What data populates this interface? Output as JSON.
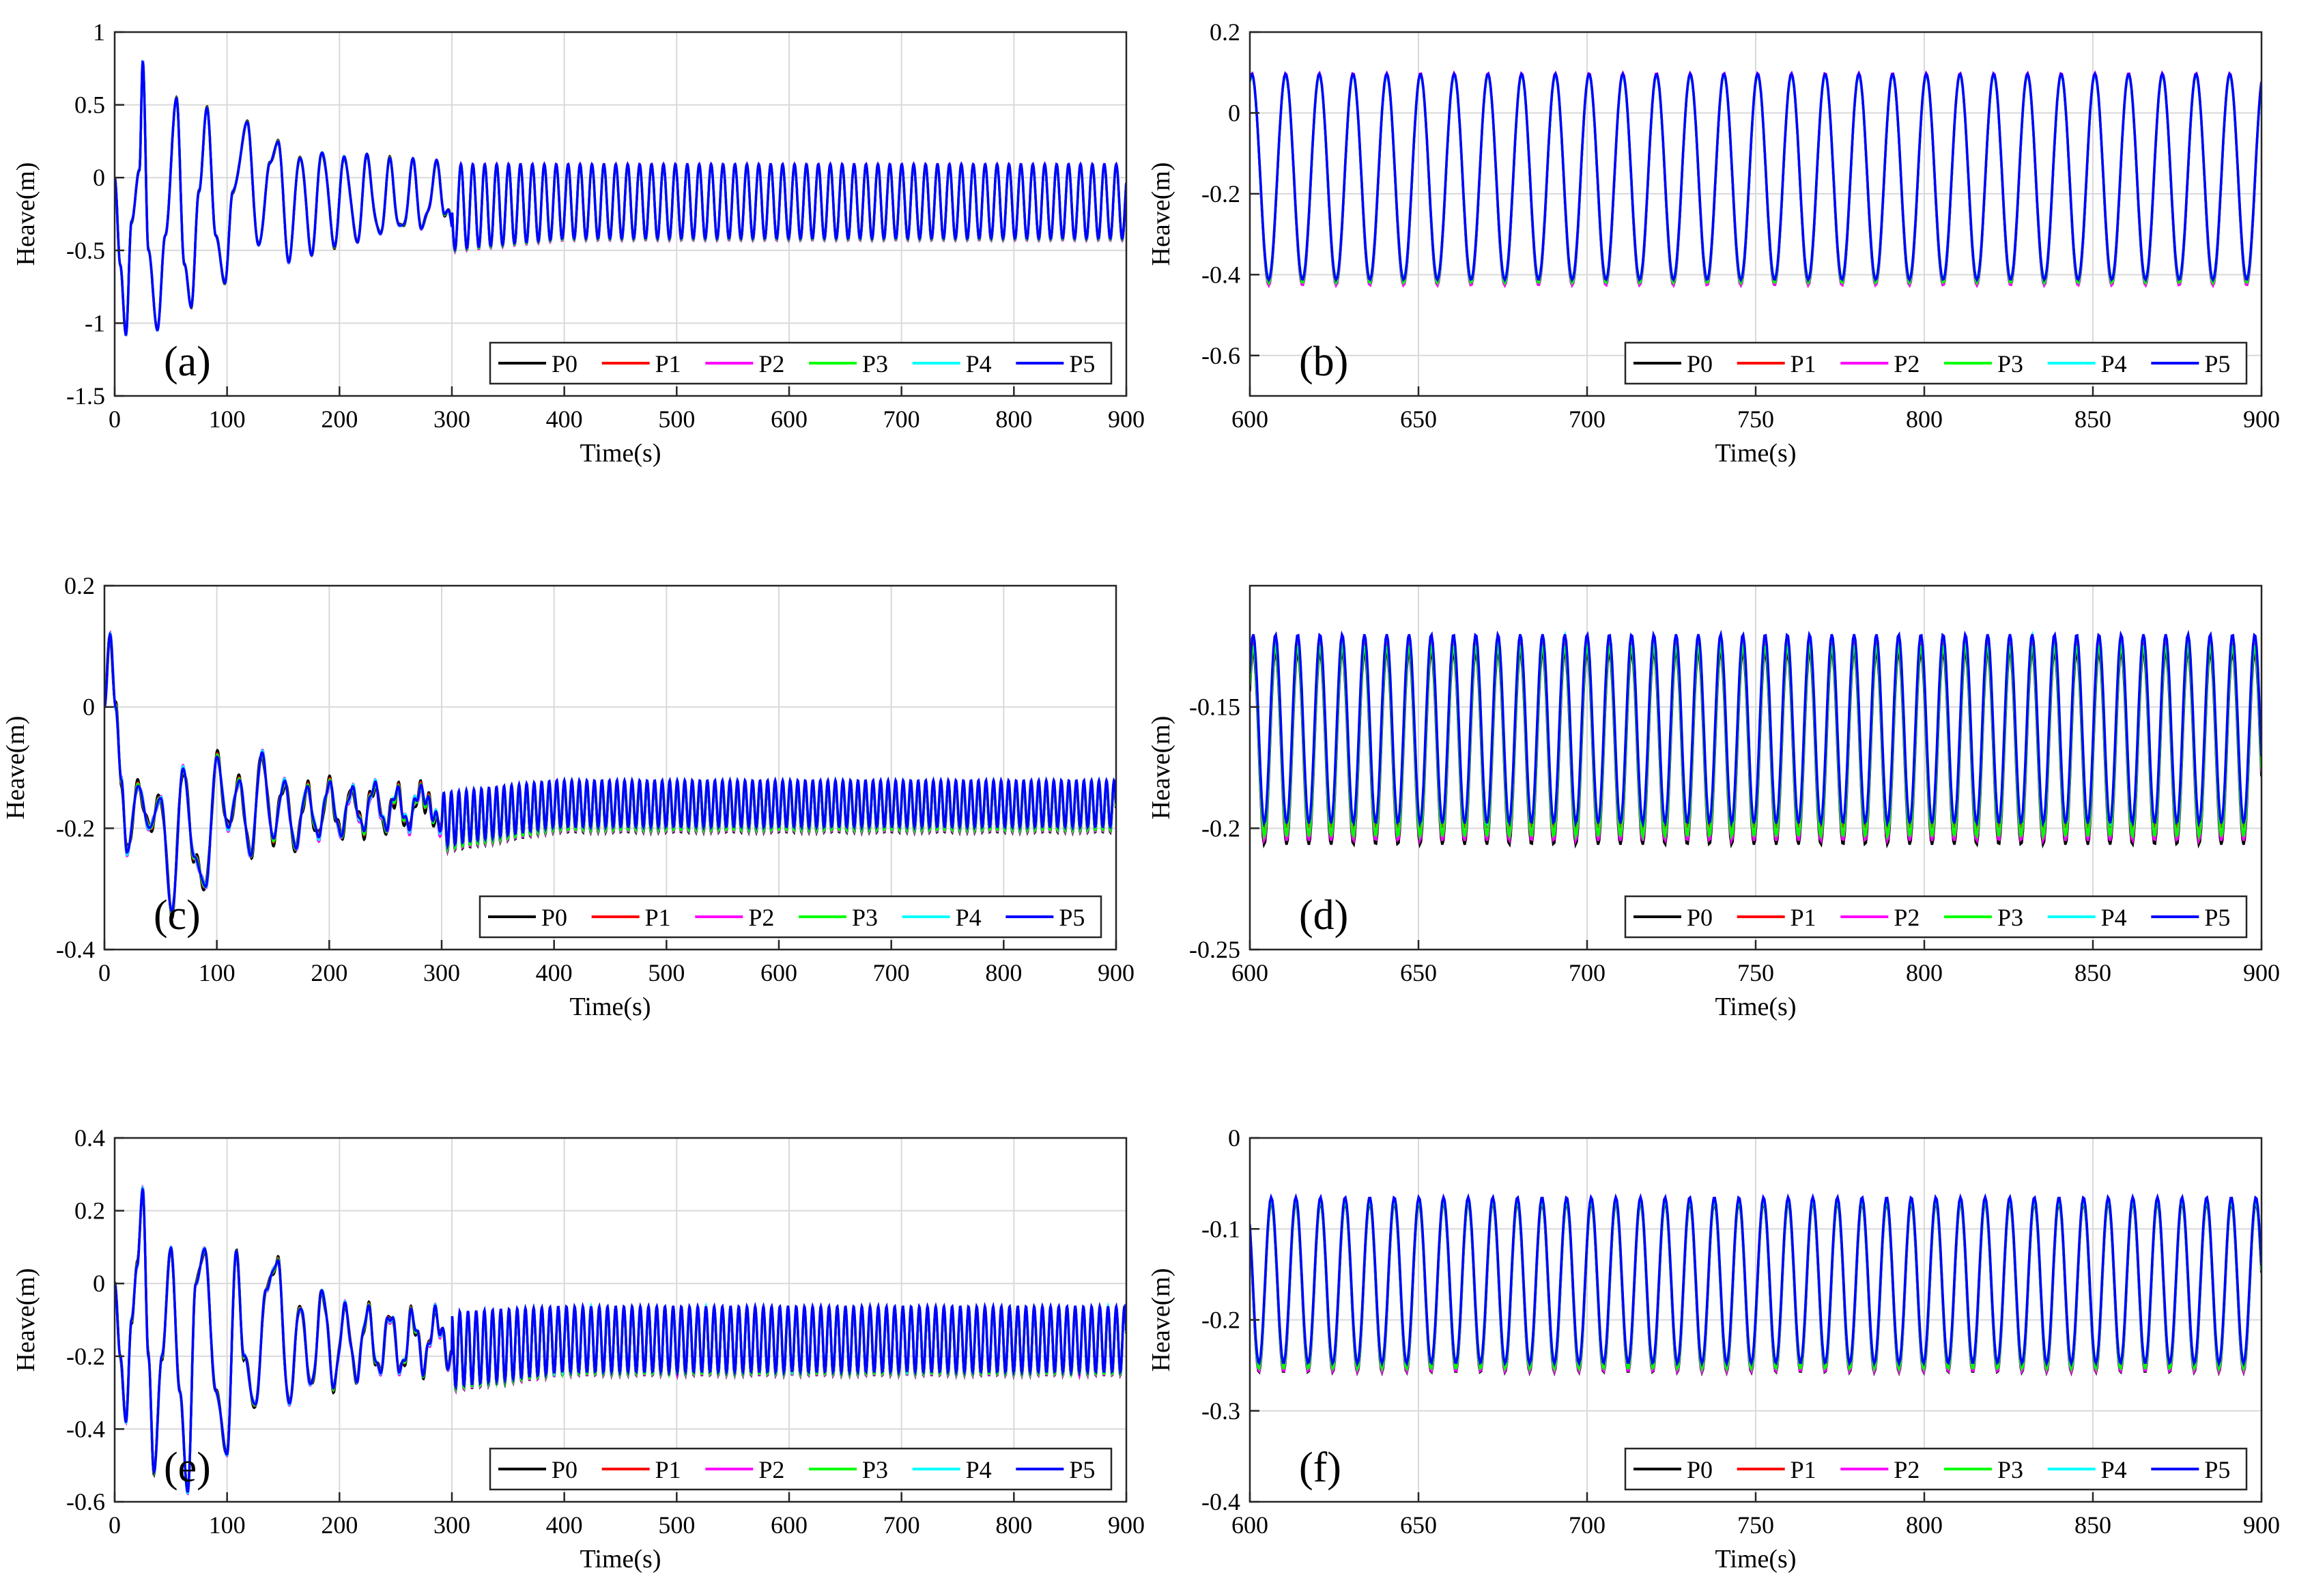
{
  "series_style": [
    {
      "name": "P0",
      "color": "#000000"
    },
    {
      "name": "P1",
      "color": "#ff0000"
    },
    {
      "name": "P2",
      "color": "#ff00ff"
    },
    {
      "name": "P3",
      "color": "#00ff00"
    },
    {
      "name": "P4",
      "color": "#00ffff"
    },
    {
      "name": "P5",
      "color": "#0000ff"
    }
  ],
  "chart_data": [
    {
      "id": "a",
      "type": "line",
      "panel_label": "(a)",
      "xlabel": "Time(s)",
      "ylabel": "Heave(m)",
      "xlim": [
        0,
        900
      ],
      "ylim": [
        -1.5,
        1
      ],
      "xticks": [
        0,
        100,
        200,
        300,
        400,
        500,
        600,
        700,
        800,
        900
      ],
      "yticks": [
        -1.5,
        -1,
        -0.5,
        0,
        0.5,
        1
      ],
      "ytick_labels": [
        "-1.5",
        "-1",
        "-0.5",
        "0",
        "0.5",
        "1"
      ],
      "grid": true,
      "legend_position": "bottom-right",
      "legend": [
        "P0",
        "P1",
        "P2",
        "P3",
        "P4",
        "P5"
      ],
      "signal": {
        "period_s": 10.6,
        "steady_max": 0.09,
        "steady_min": -0.42,
        "transient_end_s": 400,
        "transient_points": [
          [
            0,
            0
          ],
          [
            5,
            -0.6
          ],
          [
            10,
            -1.08
          ],
          [
            15,
            -0.3
          ],
          [
            22,
            0.05
          ],
          [
            25,
            0.8
          ],
          [
            30,
            -0.5
          ],
          [
            38,
            -1.05
          ],
          [
            45,
            -0.4
          ],
          [
            55,
            0.55
          ],
          [
            62,
            -0.6
          ],
          [
            68,
            -0.9
          ],
          [
            75,
            -0.1
          ],
          [
            82,
            0.5
          ],
          [
            90,
            -0.4
          ],
          [
            98,
            -0.75
          ],
          [
            105,
            -0.1
          ],
          [
            118,
            0.4
          ],
          [
            128,
            -0.5
          ],
          [
            138,
            0.1
          ],
          [
            145,
            0.3
          ],
          [
            155,
            -0.6
          ],
          [
            165,
            0.2
          ],
          [
            175,
            -0.55
          ],
          [
            185,
            0.25
          ],
          [
            195,
            -0.5
          ],
          [
            205,
            0.2
          ],
          [
            215,
            -0.5
          ],
          [
            225,
            0.2
          ],
          [
            235,
            -0.48
          ],
          [
            245,
            0.15
          ],
          [
            255,
            -0.47
          ],
          [
            265,
            0.15
          ],
          [
            275,
            -0.45
          ],
          [
            285,
            0.15
          ],
          [
            300,
            -0.44
          ]
        ]
      }
    },
    {
      "id": "b",
      "type": "line",
      "panel_label": "(b)",
      "xlabel": "Time(s)",
      "ylabel": "Heave(m)",
      "xlim": [
        600,
        900
      ],
      "ylim": [
        -0.7,
        0.2
      ],
      "xticks": [
        600,
        650,
        700,
        750,
        800,
        850,
        900
      ],
      "yticks": [
        -0.6,
        -0.4,
        -0.2,
        0,
        0.2
      ],
      "ytick_labels": [
        "-0.6",
        "-0.4",
        "-0.2",
        "0",
        "0.2"
      ],
      "grid": true,
      "legend_position": "bottom-right",
      "legend": [
        "P0",
        "P1",
        "P2",
        "P3",
        "P4",
        "P5"
      ],
      "signal": {
        "period_s": 10.0,
        "steady_max": 0.095,
        "steady_min": -0.415
      }
    },
    {
      "id": "c",
      "type": "line",
      "panel_label": "(c)",
      "xlabel": "Time(s)",
      "ylabel": "Heave(m)",
      "xlim": [
        0,
        900
      ],
      "ylim": [
        -0.4,
        0.2
      ],
      "xticks": [
        0,
        100,
        200,
        300,
        400,
        500,
        600,
        700,
        800,
        900
      ],
      "yticks": [
        -0.4,
        -0.2,
        0,
        0.2
      ],
      "ytick_labels": [
        "-0.4",
        "-0.2",
        "0",
        "0.2"
      ],
      "grid": true,
      "legend_position": "bottom-right",
      "legend": [
        "P0",
        "P1",
        "P2",
        "P3",
        "P4",
        "P5"
      ],
      "signal": {
        "period_s": 6.7,
        "steady_max": -0.123,
        "steady_min": -0.2,
        "transient_end_s": 400,
        "transient_points": [
          [
            0,
            0
          ],
          [
            5,
            0.12
          ],
          [
            10,
            0
          ],
          [
            15,
            -0.12
          ],
          [
            20,
            -0.24
          ],
          [
            30,
            -0.13
          ],
          [
            40,
            -0.2
          ],
          [
            50,
            -0.15
          ],
          [
            60,
            -0.34
          ],
          [
            70,
            -0.1
          ],
          [
            80,
            -0.25
          ],
          [
            90,
            -0.3
          ],
          [
            100,
            -0.08
          ],
          [
            110,
            -0.2
          ],
          [
            120,
            -0.12
          ],
          [
            130,
            -0.25
          ],
          [
            140,
            -0.07
          ],
          [
            150,
            -0.22
          ],
          [
            160,
            -0.12
          ],
          [
            170,
            -0.24
          ],
          [
            180,
            -0.13
          ],
          [
            190,
            -0.22
          ],
          [
            200,
            -0.12
          ],
          [
            210,
            -0.22
          ],
          [
            220,
            -0.13
          ],
          [
            230,
            -0.21
          ],
          [
            240,
            -0.12
          ],
          [
            250,
            -0.21
          ],
          [
            260,
            -0.13
          ],
          [
            270,
            -0.21
          ],
          [
            280,
            -0.13
          ],
          [
            300,
            -0.21
          ]
        ]
      }
    },
    {
      "id": "d",
      "type": "line",
      "panel_label": "(d)",
      "xlabel": "Time(s)",
      "ylabel": "Heave(m)",
      "xlim": [
        600,
        900
      ],
      "ylim": [
        -0.25,
        -0.1
      ],
      "xticks": [
        600,
        650,
        700,
        750,
        800,
        850,
        900
      ],
      "yticks": [
        -0.25,
        -0.2,
        -0.15
      ],
      "ytick_labels": [
        "-0.25",
        "-0.2",
        "-0.15"
      ],
      "grid": true,
      "legend_position": "bottom-right",
      "legend": [
        "P0",
        "P1",
        "P2",
        "P3",
        "P4",
        "P5"
      ],
      "signal": {
        "period_s": 6.6,
        "steady_max": -0.122,
        "steady_min": -0.2
      }
    },
    {
      "id": "e",
      "type": "line",
      "panel_label": "(e)",
      "xlabel": "Time(s)",
      "ylabel": "Heave(m)",
      "xlim": [
        0,
        900
      ],
      "ylim": [
        -0.6,
        0.4
      ],
      "xticks": [
        0,
        100,
        200,
        300,
        400,
        500,
        600,
        700,
        800,
        900
      ],
      "yticks": [
        -0.6,
        -0.4,
        -0.2,
        0,
        0.2,
        0.4
      ],
      "ytick_labels": [
        "-0.6",
        "-0.4",
        "-0.2",
        "0",
        "0.2",
        "0.4"
      ],
      "grid": true,
      "legend_position": "bottom-right",
      "legend": [
        "P0",
        "P1",
        "P2",
        "P3",
        "P4",
        "P5"
      ],
      "signal": {
        "period_s": 7.3,
        "steady_max": -0.065,
        "steady_min": -0.245,
        "transient_end_s": 400,
        "transient_points": [
          [
            0,
            0
          ],
          [
            5,
            -0.2
          ],
          [
            10,
            -0.38
          ],
          [
            15,
            -0.1
          ],
          [
            20,
            0.05
          ],
          [
            25,
            0.26
          ],
          [
            30,
            -0.2
          ],
          [
            35,
            -0.52
          ],
          [
            42,
            -0.2
          ],
          [
            50,
            0.1
          ],
          [
            58,
            -0.3
          ],
          [
            65,
            -0.58
          ],
          [
            72,
            0.0
          ],
          [
            80,
            0.1
          ],
          [
            90,
            -0.3
          ],
          [
            100,
            -0.48
          ],
          [
            108,
            0.1
          ],
          [
            115,
            -0.2
          ],
          [
            125,
            -0.35
          ],
          [
            135,
            0.0
          ],
          [
            145,
            0.08
          ],
          [
            155,
            -0.35
          ],
          [
            165,
            -0.05
          ],
          [
            175,
            -0.3
          ],
          [
            185,
            0.0
          ],
          [
            195,
            -0.3
          ],
          [
            205,
            -0.05
          ],
          [
            215,
            -0.28
          ],
          [
            225,
            -0.05
          ],
          [
            235,
            -0.27
          ],
          [
            245,
            -0.06
          ],
          [
            255,
            -0.27
          ],
          [
            265,
            -0.06
          ],
          [
            275,
            -0.26
          ],
          [
            285,
            -0.06
          ],
          [
            300,
            -0.26
          ]
        ]
      }
    },
    {
      "id": "f",
      "type": "line",
      "panel_label": "(f)",
      "xlabel": "Time(s)",
      "ylabel": "Heave(m)",
      "xlim": [
        600,
        900
      ],
      "ylim": [
        -0.4,
        0
      ],
      "xticks": [
        600,
        650,
        700,
        750,
        800,
        850,
        900
      ],
      "yticks": [
        -0.4,
        -0.3,
        -0.2,
        -0.1,
        0
      ],
      "ytick_labels": [
        "-0.4",
        "-0.3",
        "-0.2",
        "-0.1",
        "0"
      ],
      "grid": true,
      "legend_position": "bottom-right",
      "legend": [
        "P0",
        "P1",
        "P2",
        "P3",
        "P4",
        "P5"
      ],
      "signal": {
        "period_s": 7.3,
        "steady_max": -0.067,
        "steady_min": -0.25
      }
    }
  ]
}
